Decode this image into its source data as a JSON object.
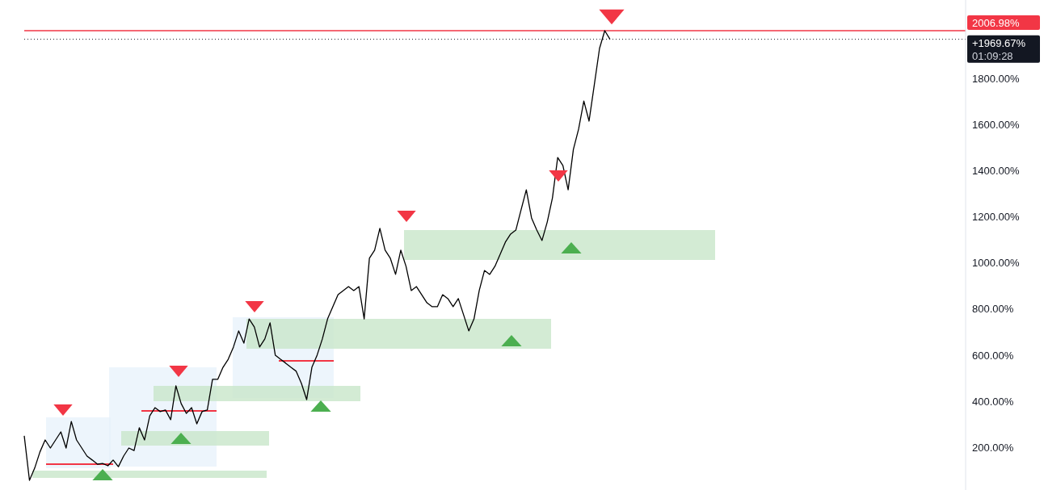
{
  "chart_data": {
    "type": "line",
    "categories": [
      null,
      null,
      null,
      null,
      null,
      null,
      null,
      null,
      null,
      null,
      null,
      null,
      null,
      null,
      null,
      null,
      null,
      null,
      null,
      null,
      null,
      null,
      null,
      null,
      null,
      null,
      null,
      null,
      null,
      null,
      null,
      null,
      null,
      null,
      null,
      null,
      null,
      null,
      null,
      null,
      null,
      null,
      null,
      null,
      null,
      null,
      null,
      null,
      null,
      null,
      null,
      null,
      null,
      null,
      null,
      null,
      null,
      null,
      null,
      null,
      null,
      null,
      null,
      null,
      null,
      null,
      null,
      null,
      null,
      null,
      null,
      null,
      null,
      null,
      null,
      null,
      null,
      null,
      null,
      null,
      null,
      null,
      null,
      null,
      null,
      null,
      null,
      null,
      null,
      null,
      null,
      null,
      null,
      null,
      null,
      null,
      null,
      null,
      null,
      null,
      null,
      null,
      null,
      null,
      null,
      null,
      null,
      null,
      null,
      null,
      null,
      null,
      null,
      null,
      null,
      null,
      null,
      null,
      null,
      null,
      null,
      null,
      null,
      null,
      null,
      null,
      null,
      null,
      null,
      null,
      null,
      null,
      null,
      null,
      null,
      null,
      null,
      null,
      null,
      null,
      null,
      null,
      null,
      null,
      null,
      null,
      null,
      null,
      null,
      null,
      null,
      null,
      null,
      null,
      null,
      null,
      null,
      null,
      null,
      null,
      null,
      null,
      null,
      null,
      null,
      null,
      null,
      null,
      null,
      null,
      null,
      null,
      null,
      null,
      null,
      null,
      null,
      null,
      null,
      null,
      null
    ],
    "series": [
      {
        "color": "#000000",
        "values": [
          250,
          57,
          110,
          180,
          232,
          197,
          232,
          267,
          197,
          312,
          232,
          197,
          162,
          145,
          127,
          130,
          120,
          145,
          116,
          162,
          197,
          186,
          285,
          232,
          337,
          372,
          355,
          362,
          320,
          467,
          390,
          347,
          372,
          302,
          355,
          362,
          495,
          495,
          547,
          582,
          635,
          705,
          652,
          757,
          722,
          635,
          670,
          740,
          600,
          582,
          565,
          547,
          530,
          477,
          407,
          547,
          600,
          670,
          757,
          810,
          862,
          880,
          897,
          880,
          897,
          757,
          1020,
          1055,
          1150,
          1055,
          1020,
          950,
          1055,
          985,
          880,
          897,
          862,
          827,
          810,
          810,
          862,
          845,
          810,
          845,
          775,
          705,
          757,
          880,
          967,
          950,
          985,
          1037,
          1090,
          1125,
          1142,
          1230,
          1317,
          1195,
          1142,
          1097,
          1177,
          1282,
          1457,
          1422,
          1317,
          1492,
          1580,
          1702,
          1615,
          1772,
          1930,
          2007,
          1970,
          null,
          null,
          null,
          null,
          null,
          null,
          null,
          null,
          null,
          null,
          null,
          null,
          null,
          null,
          null,
          null,
          null,
          null,
          null,
          null,
          null,
          null,
          null,
          null,
          null,
          null,
          null,
          null,
          null,
          null,
          null,
          null,
          null,
          null,
          null,
          null,
          null,
          null,
          null,
          null,
          null,
          null,
          null,
          null,
          null,
          null,
          null,
          null,
          null,
          null,
          null,
          null,
          null,
          null,
          null,
          null,
          null,
          null,
          null,
          null,
          null,
          null,
          null,
          null,
          null,
          null,
          null,
          null
        ]
      }
    ],
    "ylim": [
      15,
      2140
    ],
    "yticks": [
      {
        "value": 200,
        "label": "200.00%"
      },
      {
        "value": 400,
        "label": "400.00%"
      },
      {
        "value": 600,
        "label": "600.00%"
      },
      {
        "value": 800,
        "label": "800.00%"
      },
      {
        "value": 1000,
        "label": "1000.00%"
      },
      {
        "value": 1200,
        "label": "1200.00%"
      },
      {
        "value": 1400,
        "label": "1400.00%"
      },
      {
        "value": 1600,
        "label": "1600.00%"
      },
      {
        "value": 1800,
        "label": "1800.00%"
      }
    ],
    "ref_lines": [
      {
        "axis": "y",
        "value": 2006.98,
        "label": "2006.98%",
        "color": "#f23645",
        "line_style": "solid"
      },
      {
        "axis": "y",
        "value": 1969.67,
        "label": "+1969.67%",
        "color": "#131722",
        "line_style": "dotted"
      }
    ],
    "annotations": [
      "01:09:28"
    ]
  }
}
